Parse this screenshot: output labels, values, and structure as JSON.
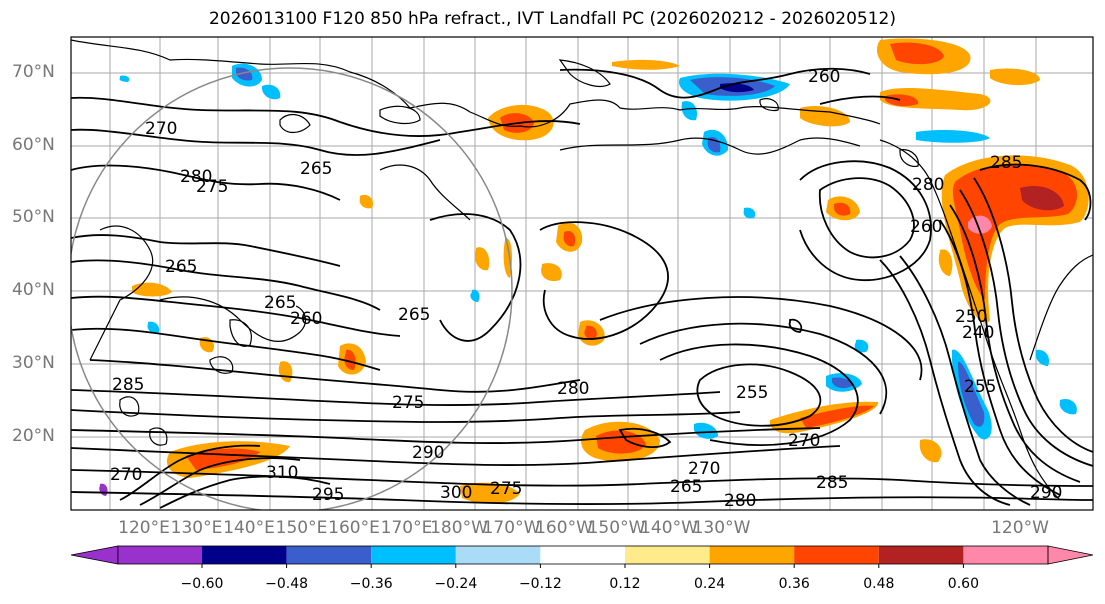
{
  "title": "2026013100 F120 850 hPa refract., IVT Landfall PC (2026020212 - 2026020512)",
  "lat_labels": [
    "70°N",
    "60°N",
    "50°N",
    "40°N",
    "30°N",
    "20°N"
  ],
  "lon_labels": [
    "120°E",
    "130°E",
    "140°E",
    "150°E",
    "160°E",
    "170°E",
    "180°W",
    "170°W",
    "160°W",
    "150°W",
    "140°W",
    "130°W",
    "120°W"
  ],
  "contour_labels": [
    "260",
    "270",
    "280",
    "275",
    "265",
    "265",
    "260",
    "265",
    "285",
    "275",
    "280",
    "255",
    "270",
    "290",
    "295",
    "300",
    "310",
    "275",
    "285",
    "265",
    "270",
    "280",
    "290",
    "280",
    "240",
    "250",
    "255",
    "260",
    "265",
    "270",
    "285"
  ],
  "colorbar": {
    "colors": [
      "#9932cc",
      "#00008b",
      "#3a5fcd",
      "#00bfff",
      "#aadcf8",
      "#ffffff",
      "#ffeb8a",
      "#ffa500",
      "#ff4500",
      "#b22222",
      "#ff88aa"
    ],
    "labels": [
      "−0.60",
      "−0.48",
      "−0.36",
      "−0.24",
      "−0.12",
      "0.12",
      "0.24",
      "0.36",
      "0.48",
      "0.60"
    ]
  }
}
